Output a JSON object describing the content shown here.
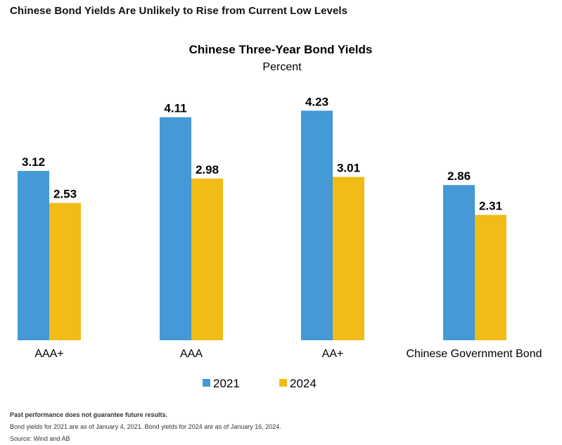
{
  "heading": "Chinese Bond Yields Are Unlikely to Rise from Current Low Levels",
  "footer": {
    "disclaimer": "Past performance does not guarantee future results.",
    "note": "Bond yields for 2021 are as of January 4, 2021. Bond yields for 2024 are as of January 16, 2024.",
    "source": "Source: Wind and AB"
  },
  "colors": {
    "series_2021": "#4499d6",
    "series_2024": "#f2bc16"
  },
  "chart_data": {
    "type": "bar",
    "title": "Chinese Three-Year Bond Yields",
    "subtitle": "Percent",
    "xlabel": "",
    "ylabel": "",
    "ylim": [
      0,
      5
    ],
    "grid": false,
    "legend_position": "bottom",
    "categories": [
      "AAA+",
      "AAA",
      "AA+",
      "Chinese Government Bond"
    ],
    "series": [
      {
        "name": "2021",
        "values": [
          3.12,
          4.11,
          4.23,
          2.86
        ]
      },
      {
        "name": "2024",
        "values": [
          2.53,
          2.98,
          3.01,
          2.31
        ]
      }
    ]
  }
}
